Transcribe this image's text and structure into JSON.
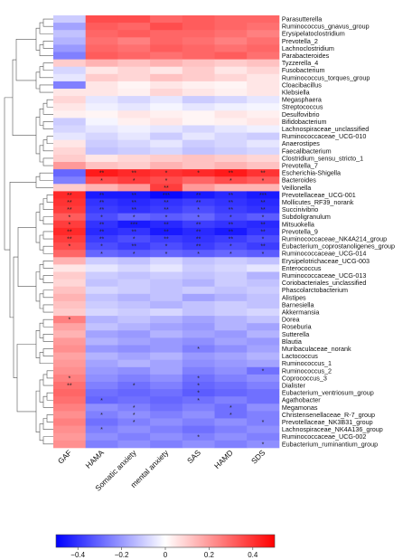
{
  "chart_data": {
    "type": "heatmap",
    "columns": [
      "GAF",
      "HAMA",
      "Somatic anxiety",
      "mental anxiety",
      "SAS",
      "HAMD",
      "SDS"
    ],
    "rows": [
      "Parasutterella",
      "Ruminococcus_gnavus_group",
      "Erysipelatoclostridium",
      "Prevotella_2",
      "Lachnoclostridium",
      "Parabacteroides",
      "Tyzzerella_4",
      "Fusobacterium",
      "Ruminococcus_torques_group",
      "Cloacibacillus",
      "Klebsiella",
      "Megasphaera",
      "Streptococcus",
      "Desulfovibrio",
      "Bifidobacterium",
      "Lachnospiraceae_unclassified",
      "Ruminococcaceae_UCG-010",
      "Anaerostipes",
      "Faecalibacterium",
      "Clostridium_sensu_stricto_1",
      "Prevotella_7",
      "Escherichia-Shigella",
      "Bacteroides",
      "Veillonella",
      "Prevotellaceae_UCG-001",
      "Mollicutes_RF39_norank",
      "Succinivibrio",
      "Subdoligranulum",
      "Mitsuokella",
      "Prevotella_9",
      "Ruminococcaceae_NK4A214_group",
      "Eubacterium_coprostanoligenes_group",
      "Ruminococcaceae_UCG-014",
      "Erysipelotrichaceae_UCG-003",
      "Enterococcus",
      "Ruminococcaceae_UCG-013",
      "Coriobacteriales_unclassified",
      "Phascolarctobacterium",
      "Alistipes",
      "Barnesiella",
      "Akkermansia",
      "Dorea",
      "Roseburia",
      "Sutterella",
      "Blautia",
      "Muribaculaceae_norank",
      "Lactococcus",
      "Ruminococcus_1",
      "Ruminococcus_2",
      "Coprococcus_3",
      "Dialister",
      "Eubacterium_ventriosum_group",
      "Agathobacter",
      "Megamonas",
      "Christensenellaceae_R-7_group",
      "Prevotellaceae_NK3B31_group",
      "Lachnospiraceae_NK4A136_group",
      "Ruminococcaceae_UCG-002",
      "Eubacterium_ruminantium_group"
    ],
    "values": [
      [
        -0.1,
        0.35,
        0.35,
        0.3,
        0.32,
        0.3,
        0.3
      ],
      [
        -0.18,
        0.32,
        0.3,
        0.35,
        0.32,
        0.3,
        0.28
      ],
      [
        -0.12,
        0.3,
        0.32,
        0.3,
        0.3,
        0.28,
        0.25
      ],
      [
        -0.15,
        0.28,
        0.25,
        0.3,
        0.28,
        0.25,
        0.28
      ],
      [
        -0.2,
        0.3,
        0.28,
        0.32,
        0.3,
        0.28,
        0.3
      ],
      [
        -0.25,
        0.32,
        0.3,
        0.28,
        0.3,
        0.32,
        0.28
      ],
      [
        0.1,
        0.15,
        0.12,
        0.15,
        0.12,
        0.1,
        0.12
      ],
      [
        -0.08,
        0.05,
        0.08,
        0.05,
        0.1,
        0.05,
        0.08
      ],
      [
        -0.05,
        0.1,
        0.08,
        0.12,
        0.1,
        0.08,
        0.05
      ],
      [
        -0.25,
        0.05,
        0.02,
        0.05,
        0.03,
        0.02,
        0.05
      ],
      [
        0.05,
        0.05,
        0.03,
        0.08,
        0.05,
        0.03,
        0.05
      ],
      [
        0.08,
        -0.05,
        -0.08,
        -0.05,
        -0.1,
        -0.08,
        -0.05
      ],
      [
        0.05,
        -0.03,
        -0.05,
        -0.02,
        -0.05,
        -0.03,
        -0.02
      ],
      [
        0.03,
        0.02,
        0.05,
        0.03,
        0.02,
        0.05,
        0.03
      ],
      [
        -0.1,
        -0.02,
        0.03,
        0.05,
        0.02,
        0.03,
        0.05
      ],
      [
        -0.08,
        -0.05,
        -0.03,
        -0.05,
        -0.08,
        -0.05,
        -0.03
      ],
      [
        -0.05,
        -0.08,
        -0.05,
        -0.1,
        -0.05,
        -0.08,
        -0.1
      ],
      [
        0.05,
        -0.1,
        -0.08,
        -0.05,
        -0.1,
        -0.08,
        -0.05
      ],
      [
        0.08,
        -0.12,
        -0.1,
        -0.08,
        -0.12,
        -0.1,
        -0.08
      ],
      [
        0.1,
        0.05,
        0.08,
        0.1,
        0.12,
        0.1,
        0.08
      ],
      [
        0.2,
        0.12,
        0.1,
        0.15,
        0.12,
        0.15,
        0.12
      ],
      [
        -0.3,
        0.45,
        0.42,
        0.4,
        0.42,
        0.45,
        0.4
      ],
      [
        -0.25,
        0.35,
        0.38,
        0.35,
        0.3,
        0.35,
        0.32
      ],
      [
        0.1,
        0.15,
        0.2,
        0.38,
        0.2,
        0.15,
        0.15
      ],
      [
        0.42,
        -0.45,
        -0.45,
        -0.48,
        -0.45,
        -0.42,
        -0.45
      ],
      [
        0.4,
        -0.4,
        -0.42,
        -0.4,
        -0.38,
        -0.4,
        -0.42
      ],
      [
        0.38,
        -0.38,
        -0.4,
        -0.38,
        -0.35,
        -0.38,
        -0.4
      ],
      [
        0.32,
        -0.35,
        -0.3,
        -0.32,
        -0.3,
        -0.35,
        -0.32
      ],
      [
        0.38,
        -0.4,
        -0.45,
        -0.42,
        -0.38,
        -0.4,
        -0.42
      ],
      [
        0.42,
        -0.42,
        -0.4,
        -0.45,
        -0.42,
        -0.45,
        -0.4
      ],
      [
        0.38,
        -0.38,
        -0.35,
        -0.38,
        -0.4,
        -0.38,
        -0.35
      ],
      [
        0.35,
        -0.35,
        -0.38,
        -0.35,
        -0.38,
        -0.35,
        -0.38
      ],
      [
        0.3,
        -0.3,
        -0.32,
        -0.3,
        -0.32,
        -0.3,
        -0.32
      ],
      [
        0.15,
        -0.1,
        -0.12,
        -0.08,
        -0.12,
        -0.1,
        -0.12
      ],
      [
        0.05,
        -0.05,
        -0.08,
        -0.05,
        -0.1,
        -0.08,
        -0.05
      ],
      [
        0.1,
        -0.1,
        -0.12,
        -0.1,
        -0.12,
        -0.1,
        -0.15
      ],
      [
        0.08,
        -0.12,
        -0.1,
        -0.12,
        -0.15,
        -0.1,
        -0.12
      ],
      [
        0.12,
        -0.08,
        -0.1,
        -0.12,
        -0.1,
        -0.12,
        -0.1
      ],
      [
        0.15,
        -0.12,
        -0.15,
        -0.12,
        -0.18,
        -0.15,
        -0.12
      ],
      [
        0.12,
        -0.1,
        -0.12,
        -0.15,
        -0.12,
        -0.1,
        -0.12
      ],
      [
        0.1,
        -0.08,
        -0.1,
        -0.08,
        -0.12,
        -0.1,
        -0.08
      ],
      [
        0.25,
        -0.15,
        -0.12,
        -0.15,
        -0.18,
        -0.15,
        -0.12
      ],
      [
        0.18,
        -0.12,
        -0.15,
        -0.18,
        -0.2,
        -0.15,
        -0.18
      ],
      [
        0.15,
        -0.18,
        -0.2,
        -0.15,
        -0.18,
        -0.2,
        -0.15
      ],
      [
        0.2,
        -0.15,
        -0.18,
        -0.2,
        -0.22,
        -0.18,
        -0.2
      ],
      [
        0.22,
        -0.2,
        -0.22,
        -0.2,
        -0.25,
        -0.22,
        -0.18
      ],
      [
        0.18,
        -0.15,
        -0.18,
        -0.15,
        -0.2,
        -0.18,
        -0.15
      ],
      [
        0.2,
        -0.18,
        -0.15,
        -0.18,
        -0.22,
        -0.2,
        -0.18
      ],
      [
        0.22,
        -0.2,
        -0.22,
        -0.18,
        -0.25,
        -0.22,
        -0.28
      ],
      [
        0.25,
        -0.22,
        -0.25,
        -0.22,
        -0.28,
        -0.25,
        -0.22
      ],
      [
        0.28,
        -0.25,
        -0.28,
        -0.25,
        -0.3,
        -0.28,
        -0.25
      ],
      [
        0.3,
        -0.28,
        -0.3,
        -0.28,
        -0.32,
        -0.3,
        -0.28
      ],
      [
        0.28,
        -0.3,
        -0.28,
        -0.3,
        -0.28,
        -0.25,
        -0.28
      ],
      [
        0.25,
        -0.22,
        -0.25,
        -0.28,
        -0.25,
        -0.28,
        -0.22
      ],
      [
        0.22,
        -0.25,
        -0.22,
        -0.25,
        -0.22,
        -0.28,
        -0.25
      ],
      [
        0.25,
        -0.28,
        -0.25,
        -0.22,
        -0.25,
        -0.22,
        -0.25
      ],
      [
        0.22,
        -0.25,
        -0.22,
        -0.25,
        -0.28,
        -0.25,
        -0.22
      ],
      [
        0.2,
        -0.22,
        -0.25,
        -0.22,
        -0.25,
        -0.22,
        -0.25
      ],
      [
        0.22,
        -0.25,
        -0.22,
        -0.25,
        -0.22,
        -0.25,
        -0.22
      ]
    ],
    "significance": [
      [
        "",
        "",
        "",
        "",
        "",
        "",
        ""
      ],
      [
        "",
        "",
        "",
        "",
        "",
        "",
        ""
      ],
      [
        "",
        "",
        "",
        "",
        "",
        "",
        ""
      ],
      [
        "",
        "",
        "",
        "",
        "",
        "",
        ""
      ],
      [
        "",
        "",
        "",
        "",
        "",
        "",
        ""
      ],
      [
        "",
        "",
        "",
        "",
        "",
        "",
        ""
      ],
      [
        "",
        "",
        "",
        "",
        "",
        "",
        ""
      ],
      [
        "",
        "",
        "",
        "",
        "",
        "",
        ""
      ],
      [
        "",
        "",
        "",
        "",
        "",
        "",
        ""
      ],
      [
        "",
        "",
        "",
        "",
        "",
        "",
        ""
      ],
      [
        "",
        "",
        "",
        "",
        "",
        "",
        ""
      ],
      [
        "",
        "",
        "",
        "",
        "",
        "",
        ""
      ],
      [
        "",
        "",
        "",
        "",
        "",
        "",
        ""
      ],
      [
        "",
        "",
        "",
        "",
        "",
        "",
        ""
      ],
      [
        "",
        "",
        "",
        "",
        "",
        "",
        ""
      ],
      [
        "",
        "",
        "",
        "",
        "",
        "",
        ""
      ],
      [
        "",
        "",
        "",
        "",
        "",
        "",
        ""
      ],
      [
        "",
        "",
        "",
        "",
        "",
        "",
        ""
      ],
      [
        "",
        "",
        "",
        "",
        "",
        "",
        ""
      ],
      [
        "",
        "",
        "",
        "",
        "",
        "",
        ""
      ],
      [
        "",
        "",
        "",
        "",
        "",
        "",
        ""
      ],
      [
        "",
        "**",
        "**",
        "*",
        "*",
        "**",
        "**"
      ],
      [
        "",
        "*",
        "*",
        "*",
        "",
        "*",
        "*"
      ],
      [
        "",
        "",
        "",
        "**",
        "",
        "",
        ""
      ],
      [
        "**",
        "**",
        "**",
        "***",
        "**",
        "**",
        "***"
      ],
      [
        "**",
        "**",
        "**",
        "**",
        "**",
        "**",
        "**"
      ],
      [
        "**",
        "**",
        "**",
        "**",
        "*",
        "**",
        "**"
      ],
      [
        "*",
        "*",
        "*",
        "*",
        "*",
        "*",
        "*"
      ],
      [
        "*",
        "**",
        "***",
        "**",
        "**",
        "**",
        "**"
      ],
      [
        "**",
        "**",
        "**",
        "**",
        "**",
        "**",
        "**"
      ],
      [
        "**",
        "**",
        "*",
        "**",
        "**",
        "**",
        "*"
      ],
      [
        "*",
        "*",
        "**",
        "*",
        "**",
        "*",
        "**"
      ],
      [
        "",
        "*",
        "*",
        "*",
        "*",
        "*",
        "*"
      ],
      [
        "",
        "",
        "",
        "",
        "",
        "",
        ""
      ],
      [
        "",
        "",
        "",
        "",
        "",
        "",
        ""
      ],
      [
        "",
        "",
        "",
        "",
        "",
        "",
        ""
      ],
      [
        "",
        "",
        "",
        "",
        "",
        "",
        ""
      ],
      [
        "",
        "",
        "",
        "",
        "",
        "",
        ""
      ],
      [
        "",
        "",
        "",
        "",
        "",
        "",
        ""
      ],
      [
        "",
        "",
        "",
        "",
        "",
        "",
        ""
      ],
      [
        "",
        "",
        "",
        "",
        "",
        "",
        ""
      ],
      [
        "*",
        "",
        "",
        "",
        "",
        "",
        ""
      ],
      [
        "",
        "",
        "",
        "",
        "",
        "",
        ""
      ],
      [
        "",
        "",
        "",
        "",
        "",
        "",
        ""
      ],
      [
        "",
        "",
        "",
        "",
        "",
        "",
        ""
      ],
      [
        "",
        "",
        "",
        "",
        "*",
        "",
        ""
      ],
      [
        "",
        "",
        "",
        "",
        "",
        "",
        ""
      ],
      [
        "",
        "",
        "",
        "",
        "",
        "",
        ""
      ],
      [
        "",
        "",
        "",
        "",
        "",
        "",
        "*"
      ],
      [
        "*",
        "",
        "",
        "",
        "*",
        "",
        ""
      ],
      [
        "**",
        "",
        "*",
        "",
        "*",
        "",
        ""
      ],
      [
        "",
        "",
        "",
        "",
        "*",
        "",
        ""
      ],
      [
        "",
        "*",
        "",
        "",
        "*",
        "",
        ""
      ],
      [
        "",
        "",
        "*",
        "",
        "",
        "*",
        ""
      ],
      [
        "",
        "*",
        "*",
        "",
        "",
        "*",
        ""
      ],
      [
        "",
        "",
        "*",
        "",
        "",
        "",
        "*"
      ],
      [
        "",
        "*",
        "",
        "",
        "",
        "",
        ""
      ],
      [
        "",
        "",
        "",
        "",
        "*",
        "",
        ""
      ],
      [
        "",
        "",
        "",
        "",
        "",
        "",
        "*"
      ]
    ],
    "colorbar": {
      "min": -0.5,
      "max": 0.5,
      "ticks": [
        -0.4,
        -0.2,
        0,
        0.2,
        0.4
      ],
      "tick_labels": [
        "−0.4",
        "−0.2",
        "0",
        "0.2",
        "0.4"
      ]
    },
    "colors": {
      "low": "#0000ff",
      "mid": "#ffffff",
      "high": "#ff0000"
    },
    "dendrogram": "left"
  }
}
